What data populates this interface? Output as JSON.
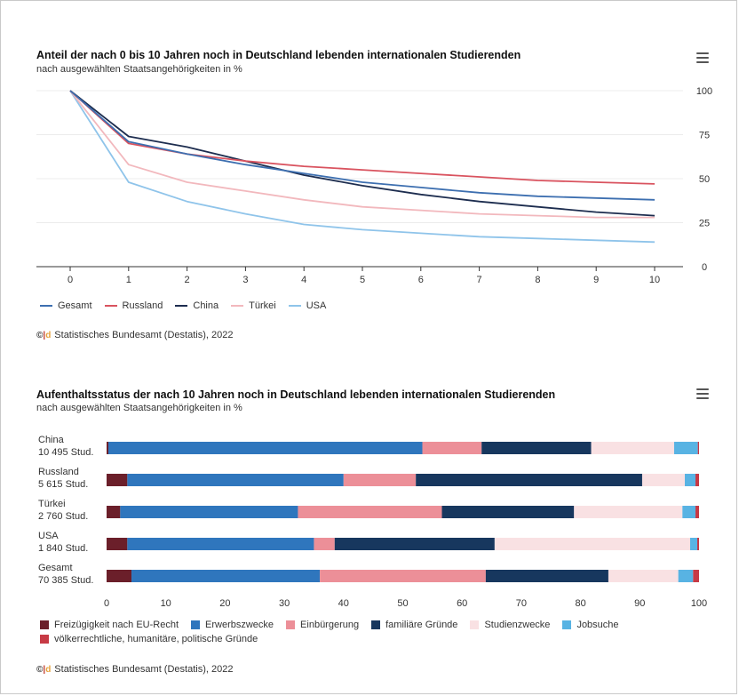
{
  "chart1": {
    "title": "Anteil der nach 0 bis 10 Jahren noch in Deutschland lebenden internationalen Studierenden",
    "subtitle": "nach ausgewählten Staatsangehörigkeiten in %",
    "source": "Statistisches Bundesamt (Destatis), 2022",
    "menu_icon": "hamburger-menu-icon"
  },
  "chart2": {
    "title": "Aufenthaltsstatus der nach 10 Jahren noch in Deutschland lebenden internationalen Studierenden",
    "subtitle": "nach ausgewählten Staatsangehörigkeiten in %",
    "source": "Statistisches Bundesamt (Destatis), 2022",
    "menu_icon": "hamburger-menu-icon"
  },
  "chart_data": [
    {
      "type": "line",
      "title": "Anteil der nach 0 bis 10 Jahren noch in Deutschland lebenden internationalen Studierenden",
      "subtitle": "nach ausgewählten Staatsangehörigkeiten in %",
      "x": [
        0,
        1,
        2,
        3,
        4,
        5,
        6,
        7,
        8,
        9,
        10
      ],
      "xlim": [
        0,
        10
      ],
      "ylim": [
        0,
        100
      ],
      "yticks": [
        0,
        25,
        50,
        75,
        100
      ],
      "grid": true,
      "legend": "bottom",
      "series": [
        {
          "name": "Gesamt",
          "color": "#3d6fb0",
          "values": [
            100,
            71,
            64,
            58,
            53,
            48,
            45,
            42,
            40,
            39,
            38
          ]
        },
        {
          "name": "Russland",
          "color": "#d9535f",
          "values": [
            100,
            70,
            64,
            60,
            57,
            55,
            53,
            51,
            49,
            48,
            47
          ]
        },
        {
          "name": "China",
          "color": "#1d2d4f",
          "values": [
            100,
            74,
            68,
            60,
            52,
            46,
            41,
            37,
            34,
            31,
            29
          ]
        },
        {
          "name": "Türkei",
          "color": "#f2b8bd",
          "values": [
            100,
            58,
            48,
            43,
            38,
            34,
            32,
            30,
            29,
            28,
            28
          ]
        },
        {
          "name": "USA",
          "color": "#8fc4ea",
          "values": [
            100,
            48,
            37,
            30,
            24,
            21,
            19,
            17,
            16,
            15,
            14
          ]
        }
      ]
    },
    {
      "type": "bar",
      "orientation": "horizontal",
      "stacked": true,
      "title": "Aufenthaltsstatus der nach 10 Jahren noch in Deutschland lebenden internationalen Studierenden",
      "subtitle": "nach ausgewählten Staatsangehörigkeiten in %",
      "categories": [
        {
          "name": "China",
          "count": "10 495 Stud."
        },
        {
          "name": "Russland",
          "count": "5 615 Stud."
        },
        {
          "name": "Türkei",
          "count": "2 760 Stud."
        },
        {
          "name": "USA",
          "count": "1 840 Stud."
        },
        {
          "name": "Gesamt",
          "count": "70 385 Stud."
        }
      ],
      "xlim": [
        0,
        100
      ],
      "xticks": [
        0,
        10,
        20,
        30,
        40,
        50,
        60,
        70,
        80,
        90,
        100
      ],
      "legend": "bottom",
      "series": [
        {
          "name": "Freizügigkeit nach EU-Recht",
          "color": "#6b1f2a",
          "values": [
            0.3,
            3.5,
            2.3,
            3.5,
            4.2
          ]
        },
        {
          "name": "Erwerbszwecke",
          "color": "#2f76bd",
          "values": [
            53.0,
            36.5,
            30.0,
            31.5,
            31.8
          ]
        },
        {
          "name": "Einbürgerung",
          "color": "#ec8f98",
          "values": [
            10.0,
            12.2,
            24.3,
            3.5,
            28.0
          ]
        },
        {
          "name": "familiäre Gründe",
          "color": "#17375e",
          "values": [
            18.5,
            38.2,
            22.3,
            27.0,
            20.7
          ]
        },
        {
          "name": "Studienzwecke",
          "color": "#f9e1e3",
          "values": [
            14.0,
            7.2,
            18.3,
            33.0,
            11.8
          ]
        },
        {
          "name": "Jobsuche",
          "color": "#58b3e3",
          "values": [
            4.0,
            1.8,
            2.2,
            1.2,
            2.5
          ]
        },
        {
          "name": "völkerrechtliche, humanitäre, politische Gründe",
          "color": "#c73a45",
          "values": [
            0.2,
            0.6,
            0.6,
            0.3,
            1.0
          ]
        }
      ]
    }
  ]
}
